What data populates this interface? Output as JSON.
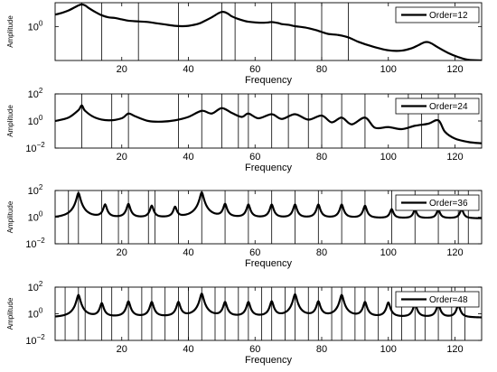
{
  "chart_data": [
    {
      "type": "line",
      "panel": 1,
      "xlabel": "Frequency",
      "ylabel": "Amplitude",
      "xlim": [
        0,
        128
      ],
      "y_scale": "log",
      "ylim_log10": [
        -1.0,
        0.7
      ],
      "x_ticks": [
        20,
        40,
        60,
        80,
        100,
        120
      ],
      "x_tick_labels": [
        "20",
        "40",
        "60",
        "80",
        "100",
        "120"
      ],
      "y_ticks_log10": [
        0
      ],
      "y_tick_labels": [
        {
          "base": "10",
          "exp": "0"
        }
      ],
      "legend": {
        "entries": [
          "Order=12"
        ],
        "placement": "top-right"
      },
      "vertical_lines": [
        8,
        14,
        25,
        37,
        50,
        54,
        65,
        72,
        80,
        88
      ],
      "series": [
        {
          "x": [
            0,
            2,
            4,
            6,
            7,
            8,
            9,
            10,
            12,
            14,
            16,
            18,
            20,
            22,
            25,
            28,
            30,
            33,
            36,
            38,
            40,
            43,
            45,
            47,
            48,
            49,
            50,
            51,
            52,
            53,
            55,
            57,
            58,
            60,
            62,
            64,
            65,
            67,
            68,
            70,
            72,
            75,
            78,
            80,
            82,
            85,
            88,
            91,
            95,
            100,
            104,
            107,
            109,
            110,
            111,
            112,
            113,
            115,
            118,
            121,
            124,
            128
          ],
          "log10_y": [
            0.35,
            0.4,
            0.47,
            0.57,
            0.62,
            0.65,
            0.62,
            0.55,
            0.43,
            0.33,
            0.27,
            0.25,
            0.21,
            0.17,
            0.15,
            0.13,
            0.1,
            0.06,
            0.02,
            0.01,
            0.02,
            0.08,
            0.17,
            0.27,
            0.33,
            0.39,
            0.43,
            0.42,
            0.37,
            0.3,
            0.22,
            0.16,
            0.14,
            0.12,
            0.11,
            0.12,
            0.13,
            0.1,
            0.07,
            0.05,
            0.01,
            -0.03,
            -0.1,
            -0.16,
            -0.22,
            -0.25,
            -0.32,
            -0.45,
            -0.58,
            -0.7,
            -0.71,
            -0.64,
            -0.55,
            -0.5,
            -0.46,
            -0.46,
            -0.5,
            -0.62,
            -0.78,
            -0.9,
            -0.98,
            -1.0
          ]
        }
      ]
    },
    {
      "type": "line",
      "panel": 2,
      "xlabel": "Frequency",
      "ylabel": "Amplitude",
      "xlim": [
        0,
        128
      ],
      "y_scale": "log",
      "ylim_log10": [
        -2,
        2
      ],
      "x_ticks": [
        20,
        40,
        60,
        80,
        100,
        120
      ],
      "x_tick_labels": [
        "20",
        "40",
        "60",
        "80",
        "100",
        "120"
      ],
      "y_ticks_log10": [
        -2,
        0,
        2
      ],
      "y_tick_labels": [
        {
          "base": "10",
          "exp": "−2"
        },
        {
          "base": "10",
          "exp": "0"
        },
        {
          "base": "10",
          "exp": "2"
        }
      ],
      "legend": {
        "entries": [
          "Order=24"
        ],
        "placement": "top-right"
      },
      "vertical_lines": [
        8,
        17,
        22,
        37,
        44,
        50,
        55,
        58,
        65,
        70,
        76,
        80,
        86,
        93,
        106,
        110,
        115
      ],
      "peaks": [
        [
          8,
          1.15
        ],
        [
          22,
          0.55
        ],
        [
          44,
          0.75
        ],
        [
          50,
          0.95
        ],
        [
          58,
          0.55
        ],
        [
          65,
          0.5
        ],
        [
          72,
          0.5
        ],
        [
          80,
          0.4
        ],
        [
          86,
          0.25
        ],
        [
          93,
          0.25
        ],
        [
          115,
          0.05
        ]
      ],
      "series": [
        {
          "x": [
            0,
            4,
            7,
            8,
            9,
            12,
            16,
            20,
            22,
            24,
            28,
            32,
            36,
            40,
            44,
            47,
            50,
            53,
            56,
            58,
            61,
            65,
            68,
            72,
            76,
            80,
            83,
            86,
            89,
            93,
            96,
            100,
            104,
            108,
            112,
            115,
            117,
            120,
            124,
            128
          ],
          "log10_y": [
            0.0,
            0.25,
            0.8,
            1.15,
            0.75,
            0.25,
            0.05,
            0.2,
            0.55,
            0.35,
            0.0,
            -0.05,
            0.05,
            0.3,
            0.75,
            0.55,
            0.95,
            0.6,
            0.3,
            0.55,
            0.2,
            0.5,
            0.15,
            0.5,
            0.1,
            0.4,
            -0.1,
            0.25,
            -0.25,
            0.25,
            -0.5,
            -0.45,
            -0.6,
            -0.35,
            -0.2,
            0.05,
            -0.8,
            -1.3,
            -1.55,
            -1.65
          ]
        }
      ]
    },
    {
      "type": "line",
      "panel": 3,
      "xlabel": "Frequency",
      "ylabel": "Amplitude",
      "xlim": [
        0,
        128
      ],
      "y_scale": "log",
      "ylim_log10": [
        -2,
        2
      ],
      "x_ticks": [
        20,
        40,
        60,
        80,
        100,
        120
      ],
      "x_tick_labels": [
        "20",
        "40",
        "60",
        "80",
        "100",
        "120"
      ],
      "y_ticks_log10": [
        -2,
        0,
        2
      ],
      "y_tick_labels": [
        {
          "base": "10",
          "exp": "−2"
        },
        {
          "base": "10",
          "exp": "0"
        },
        {
          "base": "10",
          "exp": "2"
        }
      ],
      "legend": {
        "entries": [
          "Order=36"
        ],
        "placement": "top-right"
      },
      "vertical_lines": [
        4,
        7,
        14,
        19,
        22,
        28,
        30,
        37,
        44,
        51,
        58,
        65,
        72,
        79,
        86,
        93,
        101,
        108,
        115,
        121,
        124
      ],
      "peaks": [
        [
          7,
          1.8
        ],
        [
          15,
          0.9
        ],
        [
          22,
          0.95
        ],
        [
          29,
          0.8
        ],
        [
          36,
          0.7
        ],
        [
          44,
          1.85
        ],
        [
          51,
          0.95
        ],
        [
          58,
          0.9
        ],
        [
          65,
          0.9
        ],
        [
          72,
          0.9
        ],
        [
          79,
          0.9
        ],
        [
          86,
          0.9
        ],
        [
          93,
          0.8
        ],
        [
          101,
          0.5
        ],
        [
          108,
          0.45
        ],
        [
          115,
          0.45
        ],
        [
          122,
          0.5
        ]
      ],
      "baseline_log10": -0.1
    },
    {
      "type": "line",
      "panel": 4,
      "xlabel": "Frequency",
      "ylabel": "Amplitude",
      "xlim": [
        0,
        128
      ],
      "y_scale": "log",
      "ylim_log10": [
        -2,
        2
      ],
      "x_ticks": [
        20,
        40,
        60,
        80,
        100,
        120
      ],
      "x_tick_labels": [
        "20",
        "40",
        "60",
        "80",
        "100",
        "120"
      ],
      "y_ticks_log10": [
        -2,
        0,
        2
      ],
      "y_tick_labels": [
        {
          "base": "10",
          "exp": "−2"
        },
        {
          "base": "10",
          "exp": "0"
        },
        {
          "base": "10",
          "exp": "2"
        }
      ],
      "legend": {
        "entries": [
          "Order=48"
        ],
        "placement": "top-right"
      },
      "vertical_lines": [
        3,
        7,
        9,
        14,
        17,
        22,
        26,
        29,
        33,
        37,
        40,
        44,
        48,
        51,
        55,
        58,
        62,
        65,
        69,
        72,
        76,
        79,
        83,
        86,
        90,
        93,
        97,
        101,
        104,
        108,
        111,
        115,
        119,
        123
      ],
      "peaks": [
        [
          7,
          1.4
        ],
        [
          14,
          0.75
        ],
        [
          22,
          0.9
        ],
        [
          29,
          0.85
        ],
        [
          37,
          0.85
        ],
        [
          44,
          1.5
        ],
        [
          51,
          0.85
        ],
        [
          58,
          0.85
        ],
        [
          65,
          0.9
        ],
        [
          72,
          1.45
        ],
        [
          79,
          0.9
        ],
        [
          86,
          1.4
        ],
        [
          93,
          0.85
        ],
        [
          100,
          0.8
        ],
        [
          108,
          0.7
        ],
        [
          115,
          0.65
        ],
        [
          121,
          0.6
        ]
      ],
      "baseline_log10": -0.3
    }
  ]
}
